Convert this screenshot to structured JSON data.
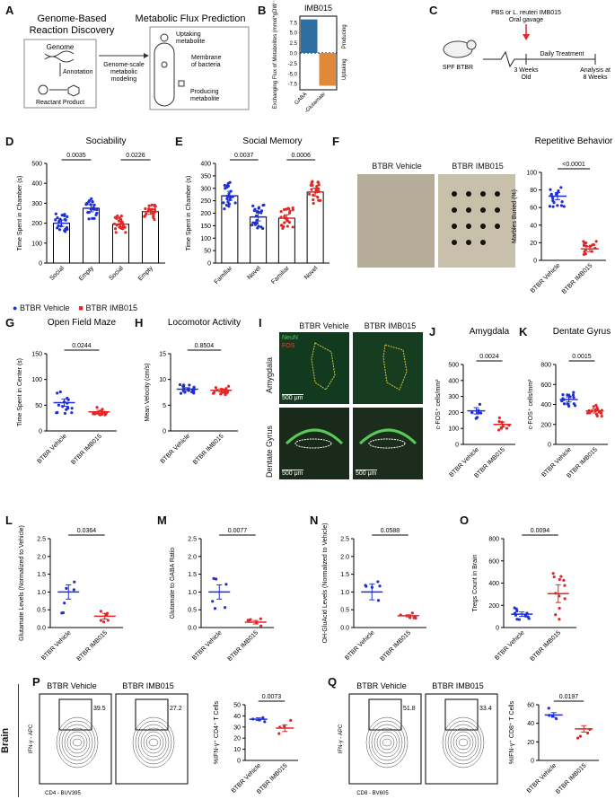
{
  "panels": {
    "A": {
      "label": "A",
      "left_title": "Genome-Based\nReaction Discovery",
      "right_title": "Metabolic Flux Prediction",
      "genome": "Genome",
      "annotation": "Annotation",
      "reactant_product": "Reactant  Product",
      "arrow_text": "Genome-scale\nmetabolic\nmodeling",
      "uptaking": "Uptaking\nmetabolite",
      "membrane": "Membrane\nof bacteria",
      "producing": "Producing\nmetabolite"
    },
    "B": {
      "label": "B",
      "producing_label": "Producing",
      "uptaking_label": "Uptaking"
    },
    "C": {
      "label": "C",
      "gavage": "PBS or L. reuteri IMB015\nOral gavage",
      "mouse": "SPF BTBR",
      "weeks3": "3 Weeks\nOld",
      "daily": "Daily Treatment",
      "analysis": "Analysis at\n8 Weeks"
    },
    "F_images": {
      "vehicle": "BTBR Vehicle",
      "imb": "BTBR IMB015"
    },
    "I_images": {
      "vehicle": "BTBR Vehicle",
      "imb": "BTBR IMB015",
      "amygdala": "Amygdala",
      "dentate": "Dentate Gyrus",
      "neun": "NeuN",
      "fos": "FOS",
      "scale": "500 μm"
    },
    "P_flow": {
      "vehicle": "BTBR Vehicle",
      "imb": "BTBR IMB015",
      "v_pct": "39.5",
      "i_pct": "27.2",
      "yaxis": "IFN-γ - APC",
      "xaxis": "CD4 - BUV395",
      "row": "Brain"
    },
    "Q_flow": {
      "vehicle": "BTBR Vehicle",
      "imb": "BTBR IMB015",
      "v_pct": "51.8",
      "i_pct": "33.4",
      "yaxis": "IFN-γ - APC",
      "xaxis": "CD8 - BV605"
    },
    "legend": {
      "vehicle": "BTBR Vehicle",
      "imb": "BTBR IMB015"
    }
  },
  "colors": {
    "vehicle": "#1f2fd6",
    "imb": "#e32626",
    "gaba": "#2e6ea0",
    "glut": "#de8a3a"
  },
  "chart_data": [
    {
      "id": "B",
      "type": "bar",
      "title": "IMB015",
      "categories": [
        "GABA",
        "L-Glutamate"
      ],
      "values": [
        8.2,
        -8.0
      ],
      "ylabel": "Exchanging Flux of Metabolites (mmol*gDW⁻¹)",
      "ylim": [
        -9,
        9
      ],
      "yticks": [
        "7.5",
        "5.0",
        "2.5",
        "0.0",
        "-2.5",
        "-5.0",
        "-7.5"
      ]
    },
    {
      "id": "D",
      "type": "scatter",
      "title": "Sociability",
      "ylabel": "Time Spent in Chamber (s)",
      "ylim": [
        0,
        500
      ],
      "yticks": [
        "0",
        "100",
        "200",
        "300",
        "400",
        "500"
      ],
      "categories": [
        "Social",
        "Empty",
        "Social",
        "Empty"
      ],
      "groups": [
        "vehicle",
        "vehicle",
        "imb",
        "imb"
      ],
      "means": [
        200,
        275,
        195,
        258
      ],
      "sems": [
        16,
        18,
        14,
        14
      ],
      "pvalues": [
        "0.0035",
        "0.0226"
      ]
    },
    {
      "id": "E",
      "type": "scatter",
      "title": "Social Memory",
      "ylabel": "Time Spent in Chamber (s)",
      "ylim": [
        0,
        400
      ],
      "yticks": [
        "0",
        "50",
        "100",
        "150",
        "200",
        "250",
        "300",
        "350",
        "400"
      ],
      "categories": [
        "Familiar",
        "Novel",
        "Familiar",
        "Novel"
      ],
      "groups": [
        "vehicle",
        "vehicle",
        "imb",
        "imb"
      ],
      "means": [
        270,
        185,
        180,
        285
      ],
      "sems": [
        18,
        16,
        14,
        16
      ],
      "pvalues": [
        "0.0037",
        "0.0006"
      ]
    },
    {
      "id": "F",
      "type": "scatter",
      "title": "Repetitive Behavior",
      "ylabel": "Marbles Buried (%)",
      "ylim": [
        0,
        100
      ],
      "yticks": [
        "0",
        "20",
        "40",
        "60",
        "80",
        "100"
      ],
      "categories": [
        "BTBR Vehicle",
        "BTBR IMB015"
      ],
      "groups": [
        "vehicle",
        "imb"
      ],
      "means": [
        73,
        13
      ],
      "sems": [
        4,
        3
      ],
      "pvalues": [
        "<0.0001"
      ]
    },
    {
      "id": "G",
      "type": "scatter",
      "title": "Open Field Maze",
      "ylabel": "Time Spent in Center (s)",
      "ylim": [
        0,
        150
      ],
      "yticks": [
        "0",
        "50",
        "100",
        "150"
      ],
      "categories": [
        "BTBR Vehicle",
        "BTBR IMB015"
      ],
      "groups": [
        "vehicle",
        "imb"
      ],
      "means": [
        55,
        37
      ],
      "sems": [
        7,
        3
      ],
      "pvalues": [
        "0.0244"
      ]
    },
    {
      "id": "H",
      "type": "scatter",
      "title": "Locomotor Activity",
      "ylabel": "Mean Velocity (cm/s)",
      "ylim": [
        0,
        15
      ],
      "yticks": [
        "0",
        "5",
        "10",
        "15"
      ],
      "categories": [
        "BTBR Vehicle",
        "BTBR IMB015"
      ],
      "groups": [
        "vehicle",
        "imb"
      ],
      "means": [
        8.1,
        7.9
      ],
      "sems": [
        0.3,
        0.3
      ],
      "pvalues": [
        "0.8504"
      ]
    },
    {
      "id": "J",
      "type": "scatter",
      "title": "Amygdala",
      "ylabel": "c-FOS⁺ cells/mm²",
      "ylim": [
        0,
        500
      ],
      "yticks": [
        "0",
        "100",
        "200",
        "300",
        "400",
        "500"
      ],
      "categories": [
        "BTBR Vehicle",
        "BTBR IMB015"
      ],
      "groups": [
        "vehicle",
        "imb"
      ],
      "means": [
        210,
        125
      ],
      "sems": [
        20,
        15
      ],
      "pvalues": [
        "0.0024"
      ]
    },
    {
      "id": "K",
      "type": "scatter",
      "title": "Dentate Gyrus",
      "ylabel": "c-FOS⁺ cells/mm²",
      "ylim": [
        0,
        800
      ],
      "yticks": [
        "0",
        "200",
        "400",
        "600",
        "800"
      ],
      "categories": [
        "BTBR Vehicle",
        "BTBR IMB015"
      ],
      "groups": [
        "vehicle",
        "imb"
      ],
      "means": [
        450,
        335
      ],
      "sems": [
        25,
        20
      ],
      "pvalues": [
        "0.0015"
      ]
    },
    {
      "id": "L",
      "type": "scatter",
      "title": "",
      "ylabel": "Glutamate Levels (Normalized to Vehicle)",
      "ylim": [
        0,
        2.5
      ],
      "yticks": [
        "0.0",
        "0.5",
        "1.0",
        "1.5",
        "2.0",
        "2.5"
      ],
      "categories": [
        "BTBR Vehicle",
        "BTBR IMB015"
      ],
      "groups": [
        "vehicle",
        "imb"
      ],
      "means": [
        1.0,
        0.32
      ],
      "sems": [
        0.2,
        0.08
      ],
      "pvalues": [
        "0.0364"
      ]
    },
    {
      "id": "M",
      "type": "scatter",
      "title": "",
      "ylabel": "Glutamate to GABA Ratio",
      "ylim": [
        0,
        2.5
      ],
      "yticks": [
        "0.0",
        "0.5",
        "1.0",
        "1.5",
        "2.0",
        "2.5"
      ],
      "categories": [
        "BTBR Vehicle",
        "BTBR IMB015"
      ],
      "groups": [
        "vehicle",
        "imb"
      ],
      "means": [
        1.0,
        0.15
      ],
      "sems": [
        0.2,
        0.05
      ],
      "pvalues": [
        "0.0077"
      ]
    },
    {
      "id": "N",
      "type": "scatter",
      "title": "",
      "ylabel": "OH-GluAcid Levels (Normalized to Vehicle)",
      "ylim": [
        0,
        2.5
      ],
      "yticks": [
        "0.0",
        "0.5",
        "1.0",
        "1.5",
        "2.0",
        "2.5"
      ],
      "categories": [
        "BTBR Vehicle",
        "BTBR IMB015"
      ],
      "groups": [
        "vehicle",
        "imb"
      ],
      "means": [
        1.0,
        0.33
      ],
      "sems": [
        0.22,
        0.03
      ],
      "pvalues": [
        "0.0588"
      ]
    },
    {
      "id": "O",
      "type": "scatter",
      "title": "",
      "ylabel": "Tregs Count in Brain",
      "ylim": [
        0,
        800
      ],
      "yticks": [
        "0",
        "200",
        "400",
        "600",
        "800"
      ],
      "categories": [
        "BTBR Vehicle",
        "BTBR IMB015"
      ],
      "groups": [
        "vehicle",
        "imb"
      ],
      "means": [
        120,
        305
      ],
      "sems": [
        20,
        80
      ],
      "pvalues": [
        "0.0094"
      ]
    },
    {
      "id": "P",
      "type": "scatter",
      "title": "",
      "ylabel": "%IFN-γ⁺ CD4⁺ T Cells",
      "ylim": [
        0,
        50
      ],
      "yticks": [
        "0",
        "10",
        "20",
        "30",
        "40",
        "50"
      ],
      "categories": [
        "BTBR Vehicle",
        "BTBR IMB015"
      ],
      "groups": [
        "vehicle",
        "imb"
      ],
      "means": [
        37,
        29
      ],
      "sems": [
        1.2,
        3
      ],
      "pvalues": [
        "0.0073"
      ]
    },
    {
      "id": "Q",
      "type": "scatter",
      "title": "",
      "ylabel": "%IFN-γ⁺ CD8⁺ T Cells",
      "ylim": [
        0,
        60
      ],
      "yticks": [
        "0",
        "20",
        "40",
        "60"
      ],
      "categories": [
        "BTBR Vehicle",
        "BTBR IMB015"
      ],
      "groups": [
        "vehicle",
        "imb"
      ],
      "means": [
        49,
        34
      ],
      "sems": [
        2.5,
        3.5
      ],
      "pvalues": [
        "0.0197"
      ]
    }
  ]
}
